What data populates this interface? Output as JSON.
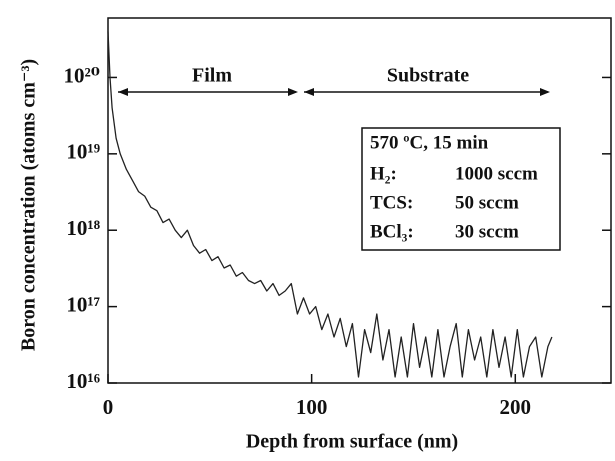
{
  "chart_data": {
    "type": "line",
    "ylabel": "Boron concentration (atoms cm⁻³)",
    "xlabel": "Depth from surface (nm)",
    "color": "#222222",
    "log_y": true,
    "xlim": [
      0,
      247
    ],
    "ylim": [
      1e+16,
      6e+20
    ],
    "xticks": [
      0,
      100,
      200
    ],
    "yticks": [
      {
        "value": 1e+16,
        "label": "10¹⁶"
      },
      {
        "value": 1e+17,
        "label": "10¹⁷"
      },
      {
        "value": 1e+18,
        "label": "10¹⁸"
      },
      {
        "value": 1e+19,
        "label": "10¹⁹"
      },
      {
        "value": 1e+20,
        "label": "10²⁰"
      }
    ],
    "annotations": [
      "Film",
      "Substrate"
    ],
    "conditions": [
      [
        "570 ºC, 15 min"
      ],
      [
        "H₂:",
        "1000 sccm"
      ],
      [
        "TCS:",
        "50 sccm"
      ],
      [
        "BCl₃:",
        "30 sccm"
      ]
    ],
    "x": [
      0,
      1,
      2,
      4,
      6,
      9,
      12,
      15,
      18,
      21,
      24,
      27,
      30,
      33,
      36,
      39,
      42,
      45,
      48,
      51,
      54,
      57,
      60,
      63,
      66,
      69,
      72,
      75,
      78,
      81,
      84,
      87,
      90,
      93,
      96,
      99,
      102,
      105,
      108,
      111,
      114,
      117,
      120,
      123,
      126,
      129,
      132,
      135,
      138,
      141,
      144,
      147,
      150,
      153,
      156,
      159,
      162,
      165,
      168,
      171,
      174,
      177,
      180,
      183,
      186,
      189,
      192,
      195,
      198,
      201,
      204,
      207,
      210,
      213,
      216,
      218
    ],
    "values": [
      4e+20,
      1e+20,
      4e+19,
      1.6e+19,
      1e+19,
      6.3e+18,
      4.5e+18,
      3.2e+18,
      2.8e+18,
      2e+18,
      1.8e+18,
      1.26e+18,
      1.4e+18,
      1e+18,
      8e+17,
      1e+18,
      6.3e+17,
      5e+17,
      5.6e+17,
      4e+17,
      4.5e+17,
      3.2e+17,
      3.5e+17,
      2.5e+17,
      2.8e+17,
      2.2e+17,
      2e+17,
      2.2e+17,
      1.6e+17,
      2e+17,
      1.4e+17,
      1.6e+17,
      2e+17,
      8e+16,
      1.3e+17,
      8e+16,
      1e+17,
      5e+16,
      8e+16,
      4e+16,
      7e+16,
      3e+16,
      6e+16,
      1.2e+16,
      5e+16,
      2.5e+16,
      8e+16,
      2e+16,
      5e+16,
      1.2e+16,
      4e+16,
      1.2e+16,
      6e+16,
      1.6e+16,
      4e+16,
      1.2e+16,
      5e+16,
      1.2e+16,
      3e+16,
      6e+16,
      1.2e+16,
      5e+16,
      2e+16,
      4e+16,
      1.2e+16,
      5e+16,
      1.6e+16,
      4e+16,
      1.2e+16,
      5e+16,
      1.2e+16,
      3e+16,
      4e+16,
      1.2e+16,
      3e+16,
      4e+16
    ]
  }
}
